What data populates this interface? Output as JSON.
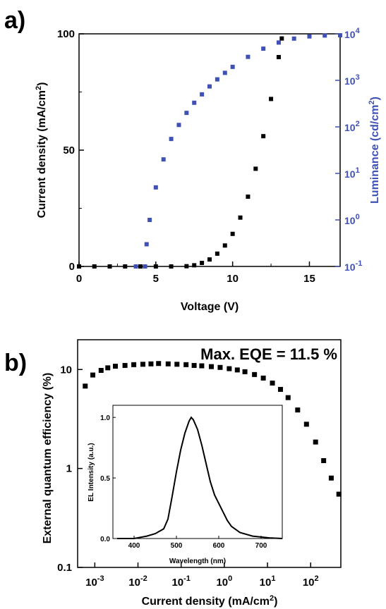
{
  "chart_data": [
    {
      "panel": "a)",
      "type": "scatter",
      "xlabel": "Voltage (V)",
      "xlim": [
        0,
        17
      ],
      "x_ticks": [
        "0",
        "5",
        "10",
        "15"
      ],
      "ylabel": "Current density (mA/cm",
      "ylabel_sup": "2",
      "ylabel_end": ")",
      "ylim": [
        0,
        100
      ],
      "y_ticks": [
        "0",
        "50",
        "100"
      ],
      "y2label": "Luminance (cd/cm",
      "y2label_sup": "2",
      "y2label_end": ")",
      "y2_scale": "log",
      "y2lim": [
        0.1,
        10000
      ],
      "y2_ticks": [
        "10^-1",
        "10^0",
        "10^1",
        "10^2",
        "10^3",
        "10^4"
      ],
      "series": [
        {
          "color": "#000000",
          "marker": "square",
          "axis": "left",
          "x": [
            0,
            1,
            2,
            3,
            4,
            5,
            6,
            7,
            7.5,
            8,
            8.5,
            9,
            9.5,
            10,
            10.5,
            11,
            11.5,
            12,
            12.5,
            13,
            13.2
          ],
          "y": [
            0,
            0,
            0,
            0,
            0,
            0,
            0,
            0.1,
            0.5,
            1.5,
            3,
            5.5,
            9,
            14,
            21,
            30,
            42,
            56,
            72,
            90,
            98
          ]
        },
        {
          "color": "#3f51b5",
          "marker": "square",
          "axis": "right",
          "x": [
            3.7,
            4.3,
            4.4,
            4.6,
            5.0,
            5.5,
            6.0,
            6.5,
            7.0,
            7.5,
            8.0,
            8.5,
            9.0,
            9.5,
            10.0,
            11.0,
            12.0,
            13.0,
            14.0,
            15.0,
            16.0,
            17.0
          ],
          "y": [
            0.1,
            0.1,
            0.3,
            1,
            5,
            20,
            55,
            110,
            200,
            330,
            500,
            740,
            1050,
            1450,
            1950,
            3200,
            4800,
            6500,
            7900,
            8800,
            9200,
            9300
          ]
        }
      ]
    },
    {
      "panel": "b)",
      "type": "scatter",
      "annotation": "Max. EQE = 11.5 %",
      "xlabel": "Current density (mA/cm",
      "xlabel_sup": "2",
      "xlabel_end": ")",
      "x_scale": "log",
      "xlim": [
        0.0004,
        500
      ],
      "x_ticks": [
        "10^-3",
        "10^-2",
        "10^-1",
        "10^0",
        "10^1",
        "10^2"
      ],
      "ylabel": "External quantum efficiency (%)",
      "y_scale": "log",
      "ylim": [
        0.1,
        20
      ],
      "y_ticks": [
        "0.1",
        "1",
        "10"
      ],
      "series": [
        {
          "color": "#000000",
          "marker": "square",
          "x": [
            0.0006,
            0.0009,
            0.0014,
            0.002,
            0.003,
            0.005,
            0.008,
            0.013,
            0.02,
            0.03,
            0.05,
            0.08,
            0.13,
            0.2,
            0.3,
            0.5,
            0.8,
            1.3,
            2,
            3,
            5,
            8,
            13,
            20,
            30,
            50,
            80,
            130,
            200,
            300,
            450
          ],
          "y": [
            6.8,
            8.8,
            9.8,
            10.4,
            10.8,
            11.0,
            11.2,
            11.3,
            11.4,
            11.5,
            11.4,
            11.3,
            11.2,
            11.0,
            10.9,
            10.7,
            10.5,
            10.2,
            9.9,
            9.5,
            8.9,
            8.2,
            7.3,
            6.3,
            5.2,
            3.9,
            2.8,
            1.85,
            1.2,
            0.8,
            0.55
          ]
        }
      ],
      "inset": {
        "type": "line",
        "xlabel": "Wavelength (nm)",
        "xlim": [
          350,
          750
        ],
        "x_ticks": [
          "400",
          "500",
          "600",
          "700"
        ],
        "ylabel": "EL Intensity (a.u.)",
        "ylim": [
          0,
          1.1
        ],
        "y_ticks": [
          "0.0",
          "0.5",
          "1.0"
        ],
        "series": [
          {
            "color": "#000000",
            "x": [
              360,
              400,
              430,
              450,
              470,
              480,
              490,
              500,
              510,
              520,
              530,
              535,
              540,
              550,
              560,
              570,
              580,
              590,
              600,
              610,
              620,
              630,
              650,
              680,
              720,
              750
            ],
            "y": [
              0.0,
              0.0,
              0.02,
              0.04,
              0.08,
              0.16,
              0.35,
              0.55,
              0.73,
              0.87,
              0.97,
              1.0,
              0.98,
              0.9,
              0.77,
              0.62,
              0.47,
              0.36,
              0.29,
              0.22,
              0.15,
              0.1,
              0.05,
              0.02,
              0.005,
              0.0
            ]
          }
        ]
      }
    }
  ]
}
